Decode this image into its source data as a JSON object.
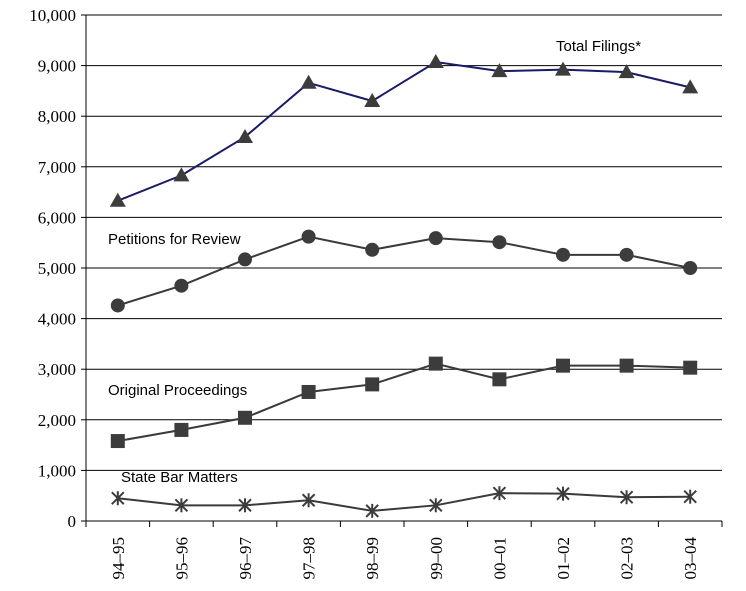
{
  "chart_data": {
    "type": "line",
    "categories": [
      "94–95",
      "95–96",
      "96–97",
      "97–98",
      "98–99",
      "99–00",
      "00–01",
      "01–02",
      "02–03",
      "03–04"
    ],
    "ylim": [
      0,
      10000
    ],
    "yticks": [
      "0",
      "1,000",
      "2,000",
      "3,000",
      "4,000",
      "5,000",
      "6,000",
      "7,000",
      "8,000",
      "9,000",
      "10,000"
    ],
    "grid": "horizontal",
    "series": [
      {
        "name": "Total Filings*",
        "marker": "triangle",
        "color": "#1a1a66",
        "values": [
          6330,
          6830,
          7590,
          8660,
          8300,
          9070,
          8890,
          8920,
          8870,
          8570
        ]
      },
      {
        "name": "Petitions for Review",
        "marker": "circle",
        "color": "#3a3a3a",
        "values": [
          4260,
          4650,
          5170,
          5620,
          5360,
          5590,
          5510,
          5260,
          5260,
          5000
        ]
      },
      {
        "name": "Original Proceedings",
        "marker": "square",
        "color": "#3a3a3a",
        "values": [
          1580,
          1800,
          2040,
          2550,
          2700,
          3110,
          2800,
          3070,
          3070,
          3030
        ]
      },
      {
        "name": "State Bar Matters",
        "marker": "star",
        "color": "#3a3a3a",
        "values": [
          450,
          310,
          310,
          410,
          200,
          310,
          550,
          540,
          470,
          480
        ]
      }
    ]
  }
}
